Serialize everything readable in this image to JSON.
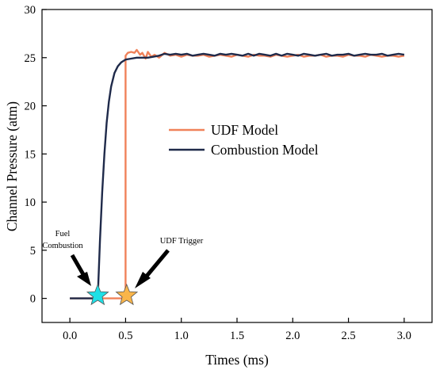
{
  "chart_data": {
    "type": "line",
    "xlabel": "Times (ms)",
    "ylabel": "Channel Pressure (atm)",
    "xlim": [
      -0.25,
      3.25
    ],
    "ylim": [
      -2.5,
      30
    ],
    "xticks": [
      0.0,
      0.5,
      1.0,
      1.5,
      2.0,
      2.5,
      3.0
    ],
    "xtick_labels": [
      "0.0",
      "0.5",
      "1.0",
      "1.5",
      "2.0",
      "2.5",
      "3.0"
    ],
    "yticks": [
      0,
      5,
      10,
      15,
      20,
      25,
      30
    ],
    "ytick_labels": [
      "0",
      "5",
      "10",
      "15",
      "20",
      "25",
      "30"
    ],
    "grid": false,
    "legend_position": "center-right",
    "series": [
      {
        "name": "UDF Model",
        "color": "#f0825a",
        "x": [
          0.0,
          0.49,
          0.5,
          0.5,
          0.52,
          0.55,
          0.58,
          0.6,
          0.63,
          0.65,
          0.68,
          0.7,
          0.73,
          0.76,
          0.8,
          0.85,
          0.9,
          0.95,
          1.0,
          1.05,
          1.1,
          1.15,
          1.2,
          1.25,
          1.3,
          1.35,
          1.4,
          1.45,
          1.5,
          1.55,
          1.6,
          1.65,
          1.7,
          1.75,
          1.8,
          1.85,
          1.9,
          1.95,
          2.0,
          2.05,
          2.1,
          2.15,
          2.2,
          2.25,
          2.3,
          2.35,
          2.4,
          2.45,
          2.5,
          2.55,
          2.6,
          2.65,
          2.7,
          2.75,
          2.8,
          2.85,
          2.9,
          2.95,
          3.0
        ],
        "y": [
          0.0,
          0.0,
          0.0,
          25.2,
          25.5,
          25.6,
          25.5,
          25.8,
          25.3,
          25.5,
          24.9,
          25.6,
          25.1,
          25.3,
          25.0,
          25.5,
          25.2,
          25.3,
          25.1,
          25.3,
          25.2,
          25.2,
          25.3,
          25.1,
          25.2,
          25.3,
          25.2,
          25.1,
          25.3,
          25.2,
          25.1,
          25.3,
          25.2,
          25.2,
          25.1,
          25.3,
          25.2,
          25.1,
          25.2,
          25.3,
          25.1,
          25.2,
          25.2,
          25.3,
          25.1,
          25.2,
          25.2,
          25.1,
          25.3,
          25.2,
          25.2,
          25.1,
          25.3,
          25.2,
          25.1,
          25.2,
          25.2,
          25.1,
          25.2
        ]
      },
      {
        "name": "Combustion Model",
        "color": "#1f2a4a",
        "x": [
          0.0,
          0.25,
          0.27,
          0.29,
          0.31,
          0.33,
          0.35,
          0.37,
          0.4,
          0.43,
          0.46,
          0.5,
          0.55,
          0.6,
          0.65,
          0.7,
          0.75,
          0.8,
          0.85,
          0.9,
          0.95,
          1.0,
          1.05,
          1.1,
          1.15,
          1.2,
          1.25,
          1.3,
          1.35,
          1.4,
          1.45,
          1.5,
          1.55,
          1.6,
          1.65,
          1.7,
          1.75,
          1.8,
          1.85,
          1.9,
          1.95,
          2.0,
          2.05,
          2.1,
          2.15,
          2.2,
          2.25,
          2.3,
          2.35,
          2.4,
          2.45,
          2.5,
          2.55,
          2.6,
          2.65,
          2.7,
          2.75,
          2.8,
          2.85,
          2.9,
          2.95,
          3.0
        ],
        "y": [
          0.0,
          0.0,
          6.0,
          11.0,
          15.0,
          18.2,
          20.4,
          22.0,
          23.4,
          24.1,
          24.5,
          24.8,
          24.9,
          25.0,
          25.0,
          25.0,
          25.1,
          25.2,
          25.4,
          25.3,
          25.4,
          25.3,
          25.4,
          25.2,
          25.3,
          25.4,
          25.3,
          25.2,
          25.4,
          25.3,
          25.4,
          25.3,
          25.2,
          25.4,
          25.2,
          25.4,
          25.3,
          25.2,
          25.4,
          25.2,
          25.4,
          25.3,
          25.2,
          25.4,
          25.3,
          25.2,
          25.3,
          25.4,
          25.2,
          25.3,
          25.3,
          25.4,
          25.2,
          25.3,
          25.4,
          25.3,
          25.3,
          25.4,
          25.2,
          25.3,
          25.4,
          25.3
        ]
      }
    ],
    "annotations": [
      {
        "name": "fuel-combustion",
        "text_lines": [
          "Fuel",
          "Combustion"
        ],
        "x": 0.25,
        "y": 0.3,
        "marker": "star",
        "marker_color": "#1ee0e6"
      },
      {
        "name": "udf-trigger",
        "text_lines": [
          "UDF Trigger"
        ],
        "x": 0.51,
        "y": 0.3,
        "marker": "star",
        "marker_color": "#f9b54a"
      }
    ]
  }
}
